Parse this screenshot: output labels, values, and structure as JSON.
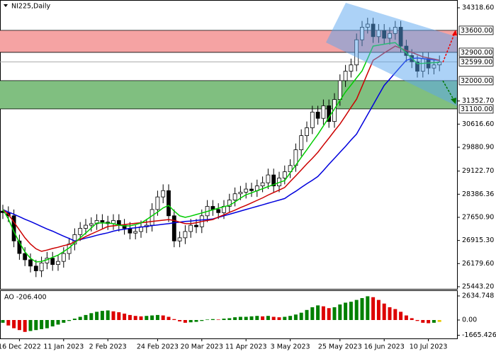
{
  "chart_data": [
    {
      "type": "candlestick",
      "title": "NI225,Daily",
      "open": [
        27850,
        27800,
        27700,
        26900,
        26500,
        26300,
        26100,
        25950,
        26200,
        26350,
        26150,
        26250,
        26500,
        26800,
        27100,
        27300,
        27400,
        27450,
        27550,
        27500,
        27450,
        27550,
        27400,
        27300,
        27150,
        27200,
        27350,
        27400,
        27900,
        28300,
        28500,
        27700,
        26900,
        27000,
        27200,
        27400,
        27350,
        27700,
        28000,
        27900,
        27800,
        28000,
        28200,
        28400,
        28450,
        28550,
        28500,
        28650,
        28750,
        29000,
        28650,
        28900,
        29100,
        29300,
        29800,
        30250,
        30500,
        31000,
        30800,
        31200,
        30700,
        31400,
        32000,
        32300,
        32500,
        33300,
        33700,
        33800,
        33400,
        33600,
        33350,
        33500,
        33700,
        33100,
        32800,
        32600,
        32300,
        32700,
        32400,
        32500
      ],
      "high": [
        28050,
        28000,
        27900,
        27100,
        26700,
        26500,
        26300,
        26400,
        26550,
        26550,
        26450,
        26700,
        27000,
        27300,
        27500,
        27600,
        27650,
        27750,
        27750,
        27700,
        27750,
        27750,
        27600,
        27500,
        27400,
        27550,
        27600,
        28100,
        28500,
        28700,
        28700,
        27900,
        27200,
        27400,
        27600,
        27600,
        27900,
        28200,
        28200,
        28100,
        28200,
        28400,
        28600,
        28650,
        28750,
        28750,
        28850,
        28950,
        29200,
        29200,
        29100,
        29300,
        29500,
        30000,
        30450,
        30700,
        31200,
        31200,
        31400,
        31400,
        31600,
        32200,
        32500,
        32700,
        33500,
        33900,
        34000,
        34000,
        33800,
        33800,
        33700,
        33900,
        33900,
        33300,
        33000,
        32800,
        32900,
        32900,
        32700,
        32800
      ],
      "low": [
        27600,
        27500,
        26700,
        26300,
        26100,
        25900,
        25750,
        25750,
        26000,
        25950,
        25950,
        26050,
        26300,
        26600,
        26900,
        27100,
        27200,
        27250,
        27300,
        27250,
        27250,
        27200,
        27100,
        26950,
        26950,
        27000,
        27150,
        27200,
        27700,
        28100,
        27500,
        26700,
        26700,
        26800,
        27000,
        27150,
        27150,
        27500,
        27700,
        27600,
        27600,
        27800,
        28000,
        28200,
        28250,
        28300,
        28300,
        28450,
        28550,
        28450,
        28450,
        28700,
        28900,
        29100,
        29600,
        30050,
        30300,
        30600,
        30600,
        30500,
        30500,
        31200,
        31800,
        32100,
        32300,
        33100,
        33500,
        33200,
        33200,
        33150,
        33150,
        33300,
        32900,
        32600,
        32400,
        32100,
        32100,
        32200,
        32200,
        32300
      ],
      "close": [
        27800,
        27700,
        26900,
        26500,
        26300,
        26100,
        25950,
        26200,
        26350,
        26150,
        26250,
        26500,
        26800,
        27100,
        27300,
        27400,
        27450,
        27550,
        27500,
        27450,
        27550,
        27400,
        27300,
        27150,
        27200,
        27350,
        27400,
        27900,
        28300,
        28500,
        27700,
        26900,
        27000,
        27200,
        27400,
        27350,
        27700,
        28000,
        27900,
        27800,
        28000,
        28200,
        28400,
        28450,
        28550,
        28500,
        28650,
        28750,
        29000,
        28650,
        28900,
        29100,
        29300,
        29800,
        30250,
        30500,
        31000,
        30800,
        31200,
        30700,
        31400,
        32000,
        32300,
        32500,
        33300,
        33700,
        33800,
        33400,
        33600,
        33350,
        33500,
        33700,
        33100,
        32800,
        32600,
        32300,
        32700,
        32400,
        32500,
        32599
      ],
      "lines": [
        {
          "color": "#0000dd",
          "values": [
            27900,
            27820,
            27750,
            27670,
            27590,
            27520,
            27440,
            27360,
            27280,
            27210,
            27130,
            27050,
            26980,
            26900,
            26940,
            26990,
            27030,
            27080,
            27120,
            27160,
            27210,
            27250,
            27270,
            27300,
            27320,
            27340,
            27360,
            27390,
            27410,
            27430,
            27450,
            27480,
            27500,
            27520,
            27530,
            27550,
            27570,
            27580,
            27600,
            27650,
            27700,
            27750,
            27800,
            27850,
            27900,
            27950,
            28000,
            28050,
            28100,
            28150,
            28200,
            28250,
            28370,
            28480,
            28600,
            28720,
            28830,
            28950,
            29140,
            29340,
            29530,
            29720,
            29910,
            30110,
            30300,
            30610,
            30920,
            31230,
            31540,
            31850,
            32050,
            32250,
            32450,
            32650,
            32700,
            32720,
            32700,
            32680,
            32660,
            32650
          ]
        },
        {
          "color": "#cc0000",
          "values": [
            27900,
            27750,
            27500,
            27250,
            27000,
            26800,
            26650,
            26570,
            26610,
            26660,
            26700,
            26750,
            26790,
            26870,
            26950,
            27040,
            27120,
            27200,
            27280,
            27360,
            27380,
            27400,
            27420,
            27440,
            27460,
            27480,
            27500,
            27520,
            27540,
            27560,
            27580,
            27550,
            27500,
            27450,
            27450,
            27480,
            27520,
            27550,
            27580,
            27660,
            27730,
            27810,
            27880,
            27960,
            28030,
            28110,
            28190,
            28270,
            28360,
            28440,
            28520,
            28600,
            28790,
            28970,
            29160,
            29350,
            29530,
            29720,
            29950,
            30170,
            30400,
            30620,
            30880,
            31150,
            31410,
            31820,
            32240,
            32650,
            32760,
            32880,
            32990,
            33100,
            33030,
            32960,
            32900,
            32830,
            32760,
            32720,
            32690,
            32650
          ]
        },
        {
          "color": "#00cc00",
          "values": [
            27900,
            27600,
            27200,
            26850,
            26550,
            26350,
            26230,
            26250,
            26300,
            26380,
            26450,
            26560,
            26680,
            26840,
            27000,
            27150,
            27310,
            27470,
            27470,
            27470,
            27450,
            27400,
            27380,
            27380,
            27420,
            27470,
            27580,
            27700,
            27820,
            27950,
            28030,
            27850,
            27700,
            27650,
            27690,
            27740,
            27790,
            27840,
            27890,
            27940,
            27990,
            28030,
            28140,
            28260,
            28370,
            28430,
            28500,
            28560,
            28630,
            28690,
            28760,
            28820,
            29070,
            29310,
            29560,
            29800,
            30050,
            30290,
            30560,
            30830,
            31100,
            31370,
            31640,
            31860,
            32090,
            32310,
            32700,
            33100,
            33130,
            33160,
            33190,
            33210,
            33040,
            32880,
            32710,
            32540,
            32550,
            32560,
            32570,
            32580
          ]
        }
      ],
      "ylim": [
        25375,
        34566
      ],
      "yticks": [
        {
          "value": 34318.6,
          "label": "34318.60"
        },
        {
          "value": 31352.7,
          "label": "31352.70"
        },
        {
          "value": 30616.6,
          "label": "30616.60"
        },
        {
          "value": 29880.9,
          "label": "29880.90"
        },
        {
          "value": 29122.7,
          "label": "29122.70"
        },
        28386.36,
        {
          "value": 27650.9,
          "label": "27650.90"
        },
        {
          "value": 26915.3,
          "label": "26915.30"
        },
        {
          "value": 26179.6,
          "label": "26179.60"
        },
        {
          "value": 25443.2,
          "label": "25443.20"
        }
      ],
      "zones": [
        {
          "low": {
            "value": 32900,
            "label": "32900.00"
          },
          "high": {
            "value": 33600,
            "label": "33600.00"
          },
          "color": "#f5a3a3"
        },
        {
          "low": {
            "value": 31100,
            "label": "31100.00"
          },
          "high": {
            "value": 32000,
            "label": "32000.00"
          },
          "color": "#80bf80"
        }
      ],
      "last_price": {
        "value": 32599,
        "label": "32599.00"
      },
      "up_color": "#ffffff",
      "down_color": "#000000"
    },
    {
      "type": "bar",
      "title": "AO -206.400",
      "categories": [
        null,
        null,
        null,
        "16 Dec 2022",
        null,
        null,
        null,
        null,
        null,
        null,
        null,
        "11 Jan 2023",
        null,
        null,
        null,
        null,
        null,
        null,
        null,
        "2 Feb 2023",
        null,
        null,
        null,
        null,
        null,
        null,
        null,
        null,
        "24 Feb 2023",
        null,
        null,
        null,
        null,
        null,
        null,
        null,
        "20 Mar 2023",
        null,
        null,
        null,
        null,
        null,
        null,
        null,
        "11 Apr 2023",
        null,
        null,
        null,
        null,
        null,
        null,
        null,
        "3 May 2023",
        null,
        null,
        null,
        null,
        null,
        null,
        null,
        null,
        "25 May 2023",
        null,
        null,
        null,
        null,
        null,
        null,
        null,
        "16 Jun 2023",
        null,
        null,
        null,
        null,
        null,
        null,
        null,
        "10 Jul 2023",
        null,
        null
      ],
      "values": [
        -300,
        -600,
        -900,
        -1100,
        -1300,
        -1200,
        -1100,
        -1000,
        -900,
        -700,
        -500,
        -300,
        -100,
        150,
        350,
        550,
        750,
        900,
        1000,
        1050,
        950,
        850,
        700,
        550,
        450,
        400,
        450,
        500,
        550,
        500,
        350,
        100,
        -150,
        -300,
        -250,
        -200,
        -100,
        50,
        100,
        50,
        150,
        200,
        300,
        350,
        350,
        400,
        450,
        400,
        450,
        350,
        300,
        350,
        450,
        600,
        800,
        1100,
        1400,
        1600,
        1500,
        1300,
        1400,
        1700,
        1900,
        2000,
        2200,
        2400,
        2600,
        2500,
        2200,
        1800,
        1400,
        1200,
        900,
        500,
        200,
        -100,
        -300,
        -350,
        -300,
        -206.4
      ],
      "up_color": "#008000",
      "down_color": "#dd0000",
      "current_color": "#e8c800",
      "ylim": [
        -2015,
        3255
      ],
      "yticks": [
        2634.748,
        {
          "value": 0,
          "label": "0.00"
        },
        -1665.426
      ]
    }
  ]
}
